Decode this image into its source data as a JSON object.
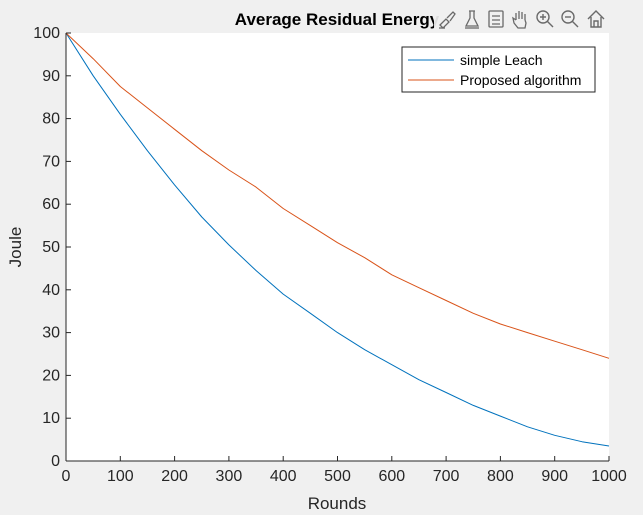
{
  "chart_data": {
    "type": "line",
    "title": "Average Residual Energy",
    "xlabel": "Rounds",
    "ylabel": "Joule",
    "xlim": [
      0,
      1000
    ],
    "ylim": [
      0,
      100
    ],
    "xticks": [
      0,
      100,
      200,
      300,
      400,
      500,
      600,
      700,
      800,
      900,
      1000
    ],
    "yticks": [
      0,
      10,
      20,
      30,
      40,
      50,
      60,
      70,
      80,
      90,
      100
    ],
    "grid": false,
    "legend_position": "top-right",
    "series": [
      {
        "name": "simple Leach",
        "color": "#0072BD",
        "x": [
          0,
          50,
          100,
          150,
          200,
          250,
          300,
          350,
          400,
          450,
          500,
          550,
          600,
          650,
          700,
          750,
          800,
          850,
          900,
          950,
          1000
        ],
        "y": [
          100,
          90,
          81,
          72.5,
          64.5,
          57,
          50.5,
          44.5,
          39,
          34.5,
          30,
          26,
          22.5,
          19,
          16,
          13,
          10.5,
          8,
          6,
          4.5,
          3.5
        ]
      },
      {
        "name": "Proposed algorithm",
        "color": "#D95319",
        "x": [
          0,
          50,
          100,
          150,
          200,
          250,
          300,
          350,
          400,
          450,
          500,
          550,
          600,
          650,
          700,
          750,
          800,
          850,
          900,
          950,
          1000
        ],
        "y": [
          100,
          94,
          87.5,
          82.5,
          77.5,
          72.5,
          68,
          64,
          59,
          55,
          51,
          47.5,
          43.5,
          40.5,
          37.5,
          34.5,
          32,
          30,
          28,
          26,
          24
        ]
      }
    ]
  },
  "toolbar": {
    "icons": [
      "brush-icon",
      "data-tips-icon",
      "legend-toggle-icon",
      "pan-icon",
      "zoom-in-icon",
      "zoom-out-icon",
      "home-icon"
    ]
  }
}
